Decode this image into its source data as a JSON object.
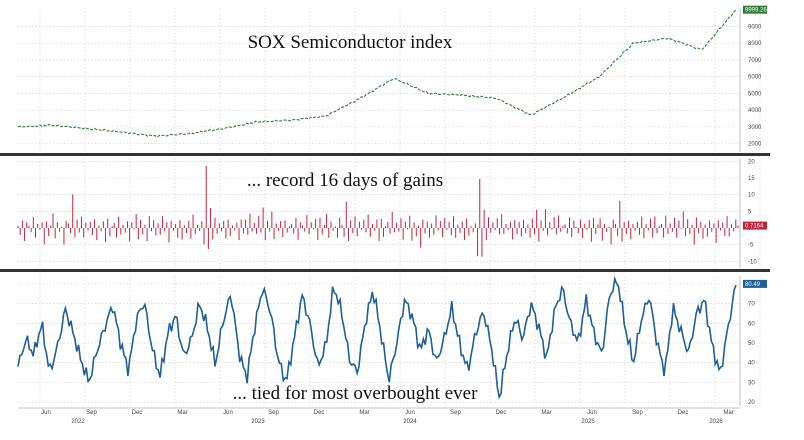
{
  "chart_data": [
    {
      "type": "line",
      "title": "SOX Semiconductor index",
      "series_color": "#2e7d32",
      "last_value_label": "9999.26",
      "ylim": [
        1500,
        10100
      ],
      "yticks": [
        "2000",
        "3000",
        "4000",
        "5000",
        "6000",
        "7000",
        "8000",
        "9000"
      ],
      "x": [
        "2021-11",
        "2022-01",
        "2022-03",
        "2022-06",
        "2022-09",
        "2022-12",
        "2023-03",
        "2023-06",
        "2023-09",
        "2023-12",
        "2024-03",
        "2024-06",
        "2024-09",
        "2024-12",
        "2025-03",
        "2025-04",
        "2025-06",
        "2025-09",
        "2025-12",
        "2026-01",
        "2026-03",
        "2026-04"
      ],
      "values": [
        3000,
        3100,
        2900,
        2700,
        2450,
        2600,
        2900,
        3300,
        3400,
        3650,
        4700,
        5900,
        5000,
        4900,
        4700,
        3700,
        4800,
        6000,
        8000,
        8300,
        7600,
        9999
      ]
    },
    {
      "type": "bar",
      "title": "... record 16 days of gains",
      "series_color": "#c2233c",
      "last_value_label": "0.7164",
      "ylim": [
        -12,
        21
      ],
      "yticks": [
        "20",
        "15",
        "10",
        "5",
        "0",
        "-5",
        "-10"
      ],
      "note": "daily % change; values dense, representative series",
      "values": [
        1.2,
        -2.1,
        3.4,
        -4.0,
        2.2,
        0.8,
        -1.5,
        3.9,
        -3.1,
        1.7,
        -0.6,
        2.8,
        -4.9,
        3.3,
        -2.4,
        1.1,
        4.6,
        -3.8,
        2.0,
        -1.2,
        0.5,
        -5.2,
        3.1,
        1.4,
        -2.7,
        10.1,
        -4.3,
        2.6,
        -1.8,
        3.7,
        -3.4,
        1.9,
        -0.9,
        2.5,
        -2.2,
        4.1,
        -3.6,
        1.3,
        -1.0,
        2.9,
        -4.4,
        3.5,
        -2.8,
        0.7,
        1.8,
        -3.0,
        4.8,
        -2.0,
        1.6,
        -1.4,
        3.2,
        -4.1,
        2.3,
        -0.4,
        5.0,
        -3.9,
        2.7,
        -2.5,
        1.0,
        -6.0,
        3.6,
        -1.7,
        2.4,
        -3.3,
        1.5,
        -2.6,
        4.0,
        -1.1,
        2.1,
        -4.6,
        3.0,
        -0.8,
        1.9,
        -2.9,
        3.8,
        -3.5,
        1.2,
        -1.6,
        2.6,
        -3.7,
        4.4,
        -2.3,
        0.9,
        -1.3,
        2.0,
        -8.8,
        18.7,
        -9.6,
        6.2,
        -4.5,
        3.4,
        -2.0,
        1.7,
        -1.1,
        2.9,
        -3.2,
        4.2,
        -2.4,
        1.3,
        -0.7,
        2.2,
        -3.8,
        3.1,
        -1.9,
        2.8,
        -2.6,
        4.5,
        -1.5,
        1.6,
        -3.0,
        3.7,
        -2.1,
        6.3,
        -4.9,
        2.4,
        -1.2,
        5.8,
        -3.6,
        1.8,
        -0.9,
        3.3,
        -2.7,
        4.0,
        -1.4,
        0.7164
      ]
    },
    {
      "type": "line",
      "title": "... tied for most overbought ever",
      "series_color": "#1f5f99",
      "last_value_label": "80.49",
      "ylim": [
        18,
        84
      ],
      "yticks": [
        "80",
        "70",
        "60",
        "50",
        "40",
        "30",
        "20"
      ],
      "x_ticks": [
        "Jun",
        "Sep",
        "Dec",
        "Mar",
        "Jun",
        "Sep",
        "Dec",
        "Mar",
        "Jun",
        "Sep",
        "Dec",
        "Mar",
        "Jun",
        "Sep",
        "Dec",
        "Mar"
      ],
      "year_labels": [
        "2022",
        "2023",
        "2024",
        "2025",
        "2026"
      ],
      "values": [
        38,
        52,
        44,
        60,
        35,
        48,
        67,
        55,
        41,
        30,
        46,
        58,
        69,
        50,
        36,
        62,
        71,
        47,
        33,
        55,
        64,
        43,
        52,
        70,
        58,
        39,
        61,
        75,
        45,
        32,
        58,
        78,
        66,
        41,
        30,
        52,
        74,
        60,
        38,
        48,
        79,
        66,
        42,
        35,
        60,
        77,
        55,
        31,
        50,
        72,
        63,
        46,
        57,
        40,
        52,
        68,
        49,
        36,
        55,
        66,
        48,
        22,
        45,
        63,
        52,
        70,
        58,
        42,
        66,
        78,
        60,
        50,
        72,
        55,
        44,
        75,
        82,
        57,
        40,
        62,
        74,
        50,
        35,
        68,
        56,
        45,
        65,
        72,
        48,
        34,
        58,
        80
      ]
    }
  ]
}
